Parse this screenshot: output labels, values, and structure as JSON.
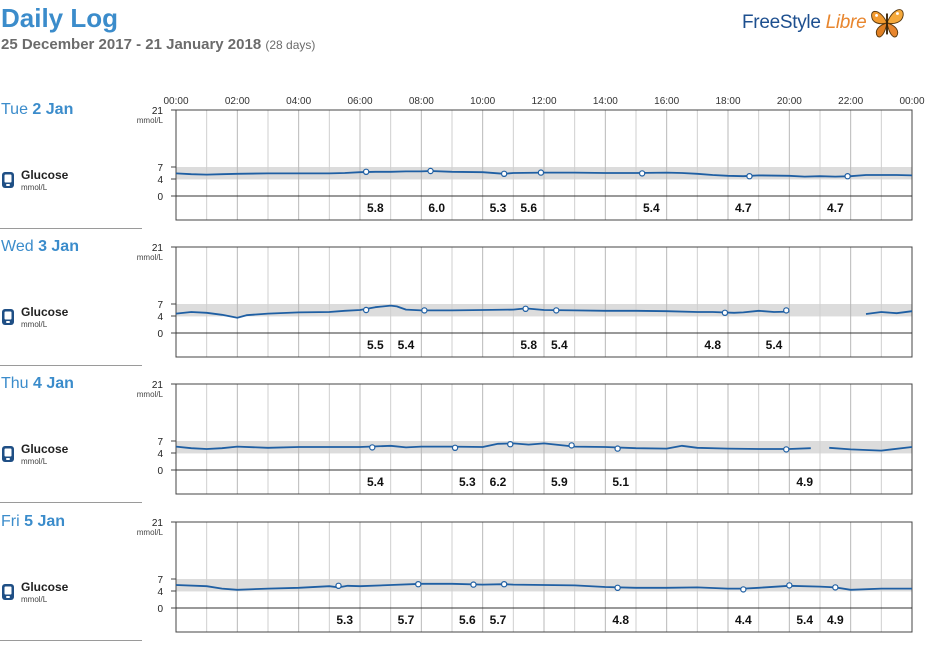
{
  "header": {
    "title": "Daily Log",
    "date_range": "25 December 2017 - 21 January 2018",
    "days": "(28 days)"
  },
  "logo": {
    "brand": "FreeStyle",
    "accent": "Libre",
    "icon": "butterfly-logo-icon"
  },
  "colors": {
    "title_blue": "#3b8ccb",
    "trace": "#1f5fa3",
    "target_band": "#dcdcdc",
    "logo_blue": "#1d4f8f",
    "logo_orange": "#e8862e"
  },
  "glucose": {
    "label": "Glucose",
    "unit": "mmol/L",
    "icon": "glucose-sensor-icon"
  },
  "chart_data": {
    "type": "line",
    "x_ticks": [
      "00:00",
      "02:00",
      "04:00",
      "06:00",
      "08:00",
      "10:00",
      "12:00",
      "14:00",
      "16:00",
      "18:00",
      "20:00",
      "22:00",
      "00:00"
    ],
    "xlim_hours": [
      0,
      24
    ],
    "y_ticks": [
      0,
      4,
      7,
      21
    ],
    "y_unit_label": "mmol/L",
    "ylim": [
      0,
      21
    ],
    "target_range": [
      3.9,
      7.0
    ],
    "days": [
      {
        "weekday": "Tue",
        "day": "2 Jan",
        "trace": [
          [
            [
              0,
              5.4
            ],
            [
              0.5,
              5.2
            ],
            [
              1,
              5.1
            ],
            [
              1.5,
              5.2
            ],
            [
              2,
              5.3
            ],
            [
              3,
              5.4
            ],
            [
              4,
              5.4
            ],
            [
              5,
              5.4
            ],
            [
              5.5,
              5.5
            ],
            [
              6,
              5.7
            ],
            [
              6.5,
              5.8
            ],
            [
              7,
              5.8
            ],
            [
              7.5,
              5.9
            ],
            [
              8,
              5.9
            ],
            [
              8.3,
              6.0
            ],
            [
              9,
              5.8
            ],
            [
              10,
              5.7
            ],
            [
              10.7,
              5.3
            ],
            [
              11,
              5.5
            ],
            [
              12,
              5.6
            ],
            [
              13,
              5.6
            ],
            [
              14,
              5.5
            ],
            [
              15,
              5.5
            ],
            [
              16,
              5.6
            ],
            [
              16.5,
              5.5
            ],
            [
              17,
              5.3
            ],
            [
              17.5,
              5.0
            ],
            [
              18,
              4.8
            ],
            [
              18.5,
              4.7
            ],
            [
              19,
              4.9
            ],
            [
              20,
              4.8
            ],
            [
              20.5,
              4.6
            ],
            [
              21,
              4.7
            ],
            [
              21.5,
              4.6
            ],
            [
              22,
              4.7
            ],
            [
              22.5,
              5.0
            ],
            [
              23,
              5.0
            ],
            [
              23.5,
              5.0
            ],
            [
              24,
              4.9
            ]
          ]
        ],
        "markers": [
          [
            6.2,
            5.8
          ],
          [
            8.3,
            6.0
          ],
          [
            10.7,
            5.3
          ],
          [
            11.9,
            5.6
          ],
          [
            15.2,
            5.4
          ],
          [
            18.7,
            4.7
          ],
          [
            21.9,
            4.7
          ]
        ],
        "readings": [
          {
            "time": 6.5,
            "value": "5.8"
          },
          {
            "time": 8.5,
            "value": "6.0"
          },
          {
            "time": 10.5,
            "value": "5.3"
          },
          {
            "time": 11.5,
            "value": "5.6"
          },
          {
            "time": 15.5,
            "value": "5.4"
          },
          {
            "time": 18.5,
            "value": "4.7"
          },
          {
            "time": 21.5,
            "value": "4.7"
          }
        ]
      },
      {
        "weekday": "Wed",
        "day": "3 Jan",
        "trace": [
          [
            [
              0,
              4.6
            ],
            [
              0.5,
              5.0
            ],
            [
              1,
              4.8
            ],
            [
              1.5,
              4.3
            ],
            [
              2,
              3.6
            ],
            [
              2.3,
              4.2
            ],
            [
              3,
              4.6
            ],
            [
              4,
              4.9
            ],
            [
              5,
              5.0
            ],
            [
              5.5,
              5.3
            ],
            [
              6,
              5.5
            ],
            [
              6.5,
              6.2
            ],
            [
              7,
              6.6
            ],
            [
              7.2,
              6.4
            ],
            [
              7.5,
              5.6
            ],
            [
              8,
              5.4
            ],
            [
              9,
              5.4
            ],
            [
              10,
              5.5
            ],
            [
              11,
              5.6
            ],
            [
              11.4,
              5.9
            ],
            [
              12,
              5.5
            ],
            [
              13,
              5.4
            ],
            [
              14,
              5.3
            ],
            [
              15,
              5.3
            ],
            [
              16,
              5.2
            ],
            [
              17,
              5.0
            ],
            [
              17.5,
              5.0
            ],
            [
              18.2,
              4.8
            ],
            [
              18.5,
              4.9
            ],
            [
              19,
              5.3
            ],
            [
              19.5,
              5.0
            ],
            [
              20,
              5.1
            ]
          ],
          [
            [
              22.5,
              4.5
            ],
            [
              23,
              5.0
            ],
            [
              23.5,
              4.7
            ],
            [
              24,
              5.2
            ]
          ]
        ],
        "markers": [
          [
            6.2,
            5.5
          ],
          [
            8.1,
            5.4
          ],
          [
            11.4,
            5.8
          ],
          [
            12.4,
            5.4
          ],
          [
            17.9,
            4.8
          ],
          [
            19.9,
            5.4
          ]
        ],
        "readings": [
          {
            "time": 6.5,
            "value": "5.5"
          },
          {
            "time": 7.5,
            "value": "5.4"
          },
          {
            "time": 11.5,
            "value": "5.8"
          },
          {
            "time": 12.5,
            "value": "5.4"
          },
          {
            "time": 17.5,
            "value": "4.8"
          },
          {
            "time": 19.5,
            "value": "5.4"
          }
        ]
      },
      {
        "weekday": "Thu",
        "day": "4 Jan",
        "trace": [
          [
            [
              0,
              5.6
            ],
            [
              0.5,
              5.2
            ],
            [
              1,
              5.0
            ],
            [
              1.5,
              5.2
            ],
            [
              2,
              5.6
            ],
            [
              3,
              5.3
            ],
            [
              4,
              5.5
            ],
            [
              5,
              5.5
            ],
            [
              6,
              5.5
            ],
            [
              7,
              5.8
            ],
            [
              7.5,
              5.4
            ],
            [
              8,
              5.6
            ],
            [
              9,
              5.6
            ],
            [
              10,
              5.5
            ],
            [
              10.5,
              6.3
            ],
            [
              11,
              6.4
            ],
            [
              11.5,
              6.1
            ],
            [
              12,
              6.4
            ],
            [
              13,
              5.6
            ],
            [
              14,
              5.5
            ],
            [
              15,
              5.2
            ],
            [
              16,
              5.1
            ],
            [
              16.5,
              5.8
            ],
            [
              17,
              5.3
            ],
            [
              18,
              5.1
            ],
            [
              19,
              5.0
            ],
            [
              20,
              5.0
            ],
            [
              20.7,
              5.2
            ]
          ],
          [
            [
              21.3,
              5.3
            ],
            [
              22,
              4.9
            ],
            [
              23,
              4.6
            ],
            [
              24,
              5.5
            ]
          ]
        ],
        "markers": [
          [
            6.4,
            5.4
          ],
          [
            9.1,
            5.3
          ],
          [
            10.9,
            6.2
          ],
          [
            12.9,
            5.9
          ],
          [
            14.4,
            5.1
          ],
          [
            19.9,
            4.9
          ]
        ],
        "readings": [
          {
            "time": 6.5,
            "value": "5.4"
          },
          {
            "time": 9.5,
            "value": "5.3"
          },
          {
            "time": 10.5,
            "value": "6.2"
          },
          {
            "time": 12.5,
            "value": "5.9"
          },
          {
            "time": 14.5,
            "value": "5.1"
          },
          {
            "time": 20.5,
            "value": "4.9"
          }
        ]
      },
      {
        "weekday": "Fri",
        "day": "5 Jan",
        "trace": [
          [
            [
              0,
              5.5
            ],
            [
              1,
              5.2
            ],
            [
              1.5,
              4.6
            ],
            [
              2,
              4.3
            ],
            [
              3,
              4.6
            ],
            [
              4,
              4.8
            ],
            [
              5,
              5.2
            ],
            [
              5.3,
              4.9
            ],
            [
              5.6,
              5.3
            ],
            [
              6,
              5.2
            ],
            [
              7,
              5.5
            ],
            [
              8,
              5.8
            ],
            [
              9,
              5.8
            ],
            [
              10,
              5.6
            ],
            [
              10.7,
              5.7
            ],
            [
              11,
              5.6
            ],
            [
              12,
              5.5
            ],
            [
              13,
              5.4
            ],
            [
              14,
              5.0
            ],
            [
              15,
              4.8
            ],
            [
              16,
              4.8
            ],
            [
              17,
              4.9
            ],
            [
              18,
              4.6
            ],
            [
              18.5,
              4.6
            ],
            [
              19,
              4.8
            ],
            [
              20,
              5.3
            ],
            [
              21,
              5.1
            ],
            [
              21.5,
              4.9
            ],
            [
              22,
              4.3
            ],
            [
              23,
              4.6
            ],
            [
              24,
              4.6
            ]
          ]
        ],
        "markers": [
          [
            5.3,
            5.3
          ],
          [
            7.9,
            5.7
          ],
          [
            9.7,
            5.6
          ],
          [
            10.7,
            5.7
          ],
          [
            14.4,
            4.8
          ],
          [
            18.5,
            4.4
          ],
          [
            20.0,
            5.4
          ],
          [
            21.5,
            4.9
          ]
        ],
        "readings": [
          {
            "time": 5.5,
            "value": "5.3"
          },
          {
            "time": 7.5,
            "value": "5.7"
          },
          {
            "time": 9.5,
            "value": "5.6"
          },
          {
            "time": 10.5,
            "value": "5.7"
          },
          {
            "time": 14.5,
            "value": "4.8"
          },
          {
            "time": 18.5,
            "value": "4.4"
          },
          {
            "time": 20.5,
            "value": "5.4"
          },
          {
            "time": 21.5,
            "value": "4.9"
          }
        ]
      }
    ]
  }
}
